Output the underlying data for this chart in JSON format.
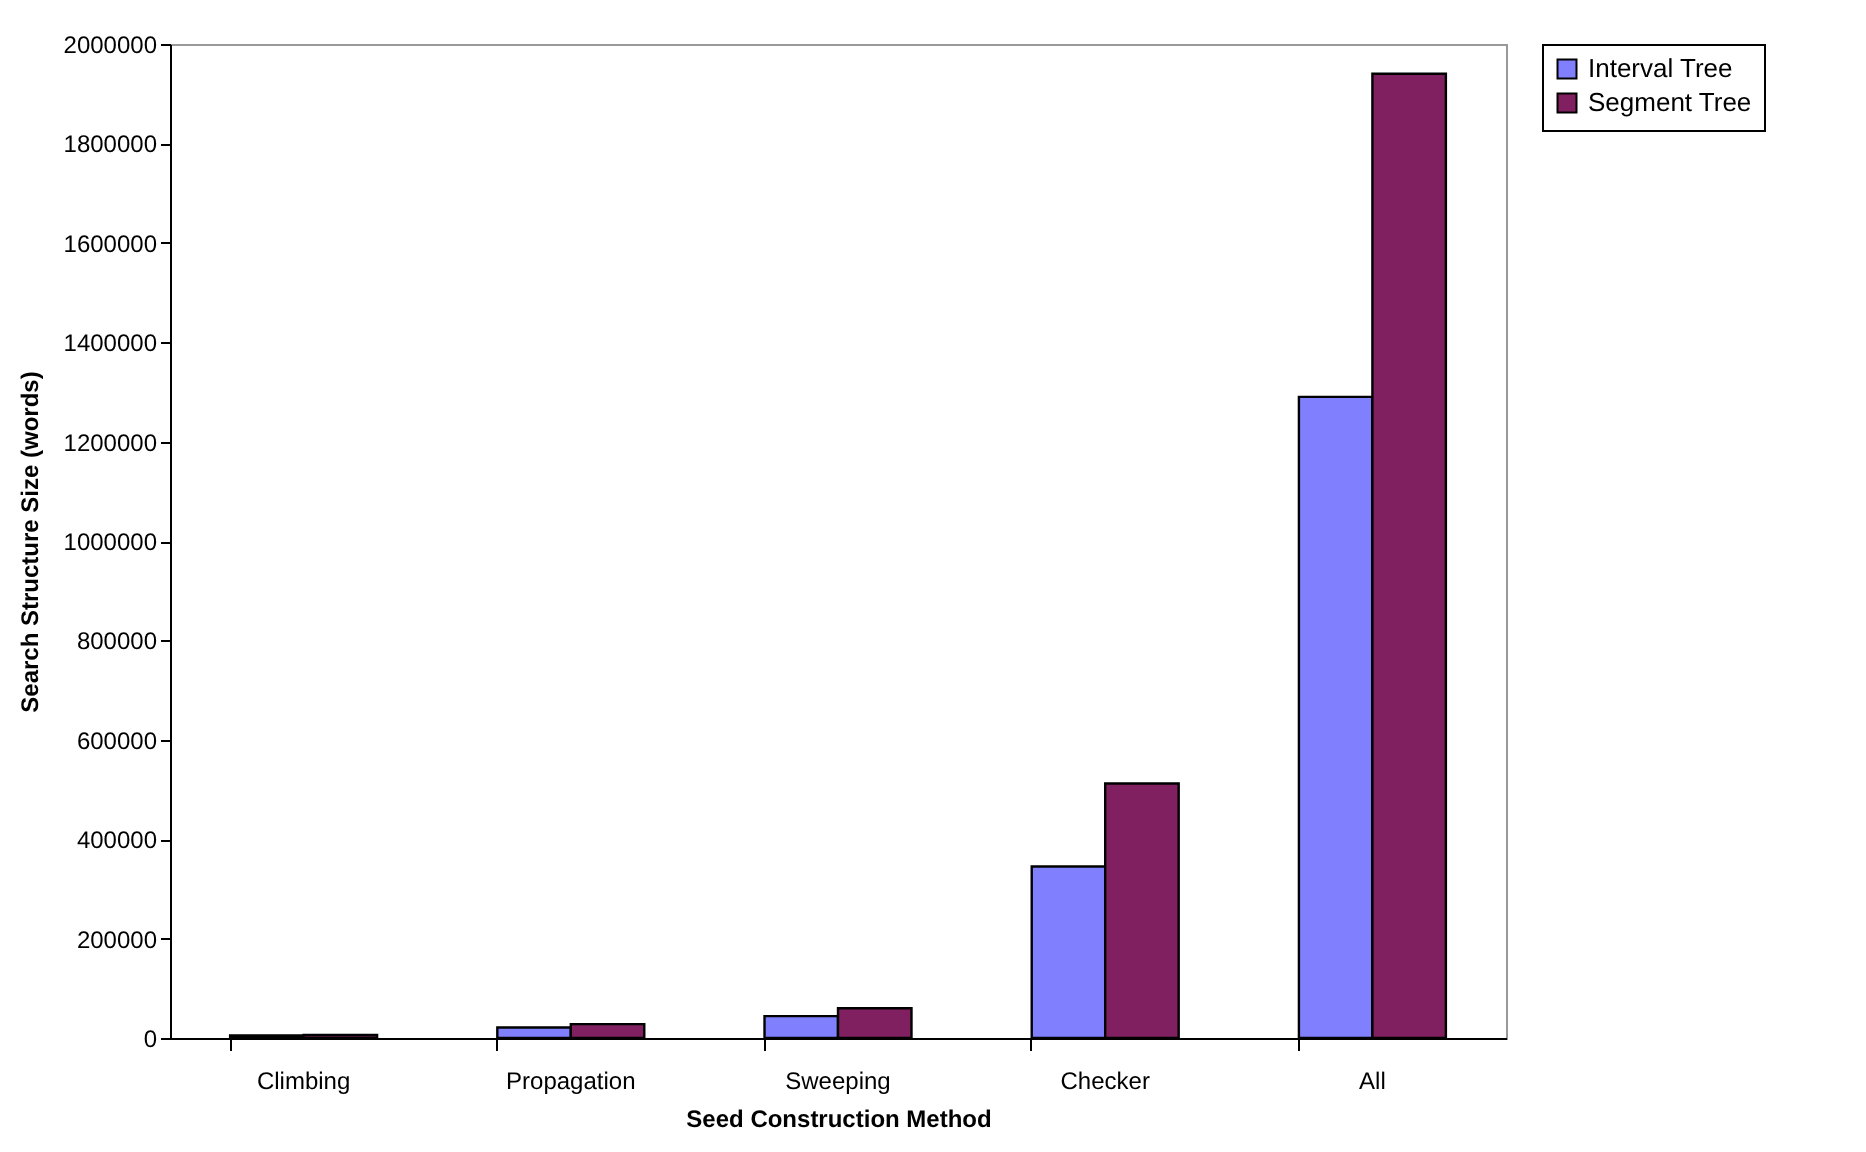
{
  "chart_data": {
    "type": "bar",
    "xlabel": "Seed Construction Method",
    "ylabel": "Search Structure Size (words)",
    "categories": [
      "Climbing",
      "Propagation",
      "Sweeping",
      "Checker",
      "All"
    ],
    "series": [
      {
        "name": "Interval Tree",
        "color": "#8080ff",
        "values": [
          5000,
          21000,
          44000,
          345000,
          1290000
        ]
      },
      {
        "name": "Segment Tree",
        "color": "#802060",
        "values": [
          6000,
          28000,
          60000,
          512000,
          1940000
        ]
      }
    ],
    "ylim": [
      0,
      2000000
    ],
    "yticks": [
      0,
      200000,
      400000,
      600000,
      800000,
      1000000,
      1200000,
      1400000,
      1600000,
      1800000,
      2000000
    ],
    "grid": false,
    "legend": "right"
  }
}
